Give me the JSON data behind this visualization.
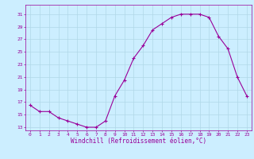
{
  "x": [
    0,
    1,
    2,
    3,
    4,
    5,
    6,
    7,
    8,
    9,
    10,
    11,
    12,
    13,
    14,
    15,
    16,
    17,
    18,
    19,
    20,
    21,
    22,
    23
  ],
  "y": [
    16.5,
    15.5,
    15.5,
    14.5,
    14,
    13.5,
    13,
    13,
    14,
    18,
    20.5,
    24,
    26,
    28.5,
    29.5,
    30.5,
    31,
    31,
    31,
    30.5,
    27.5,
    25.5,
    21,
    18
  ],
  "line_color": "#990099",
  "marker": "+",
  "bg_color": "#cceeff",
  "grid_color": "#aaddee",
  "xlabel": "Windchill (Refroidissement éolien,°C)",
  "xlabel_color": "#990099",
  "tick_color": "#990099",
  "yticks": [
    13,
    15,
    17,
    19,
    21,
    23,
    25,
    27,
    29,
    31
  ],
  "xticks": [
    0,
    1,
    2,
    3,
    4,
    5,
    6,
    7,
    8,
    9,
    10,
    11,
    12,
    13,
    14,
    15,
    16,
    17,
    18,
    19,
    20,
    21,
    22,
    23
  ],
  "ylim": [
    12.5,
    32.5
  ],
  "xlim": [
    -0.5,
    23.5
  ]
}
